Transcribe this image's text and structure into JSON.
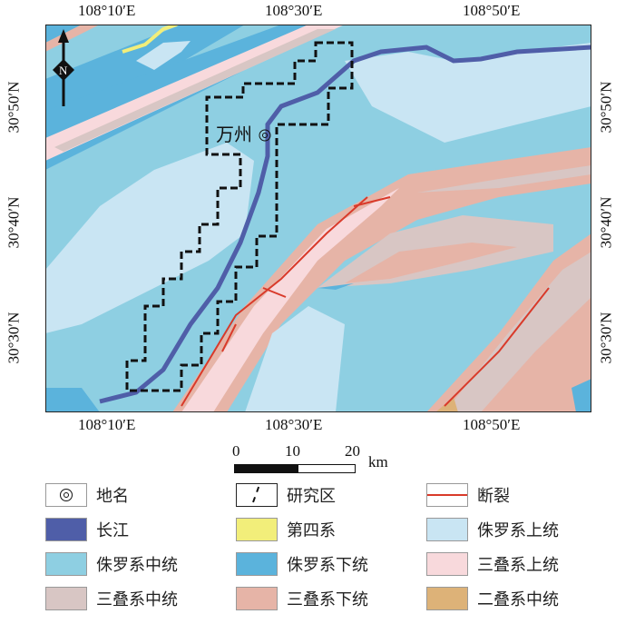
{
  "axes": {
    "top": [
      "108°10′E",
      "108°30′E",
      "108°50′E"
    ],
    "bottom": [
      "108°10′E",
      "108°30′E",
      "108°50′E"
    ],
    "left": [
      "30°50′N",
      "30°40′N",
      "30°30′N"
    ],
    "right": [
      "30°50′N",
      "30°40′N",
      "30°30′N"
    ]
  },
  "north_arrow": "N",
  "place_label": "万州",
  "scale_bar": {
    "ticks": [
      "0",
      "10",
      "20"
    ],
    "unit": "km"
  },
  "colors": {
    "yangtze": "#4f5ea8",
    "quaternary": "#f2ee7a",
    "jurassic_upper": "#c9e5f3",
    "jurassic_middle": "#8ecfe2",
    "jurassic_lower": "#5bb3dc",
    "triassic_upper": "#f8d9dc",
    "triassic_middle": "#d8c6c4",
    "triassic_lower": "#e6b4a7",
    "permian_middle": "#ddb278",
    "fault": "#d93a2a"
  },
  "legend": [
    {
      "label": "地名",
      "symbol": "place-icon"
    },
    {
      "label": "研究区",
      "symbol": "study-area-icon"
    },
    {
      "label": "断裂",
      "symbol": "fault-icon"
    },
    {
      "label": "长江",
      "color": "#4f5ea8"
    },
    {
      "label": "第四系",
      "color": "#f2ee7a"
    },
    {
      "label": "侏罗系上统",
      "color": "#c9e5f3"
    },
    {
      "label": "侏罗系中统",
      "color": "#8ecfe2"
    },
    {
      "label": "侏罗系下统",
      "color": "#5bb3dc"
    },
    {
      "label": "三叠系上统",
      "color": "#f8d9dc"
    },
    {
      "label": "三叠系中统",
      "color": "#d8c6c4"
    },
    {
      "label": "三叠系下统",
      "color": "#e6b4a7"
    },
    {
      "label": "二叠系中统",
      "color": "#ddb278"
    }
  ]
}
